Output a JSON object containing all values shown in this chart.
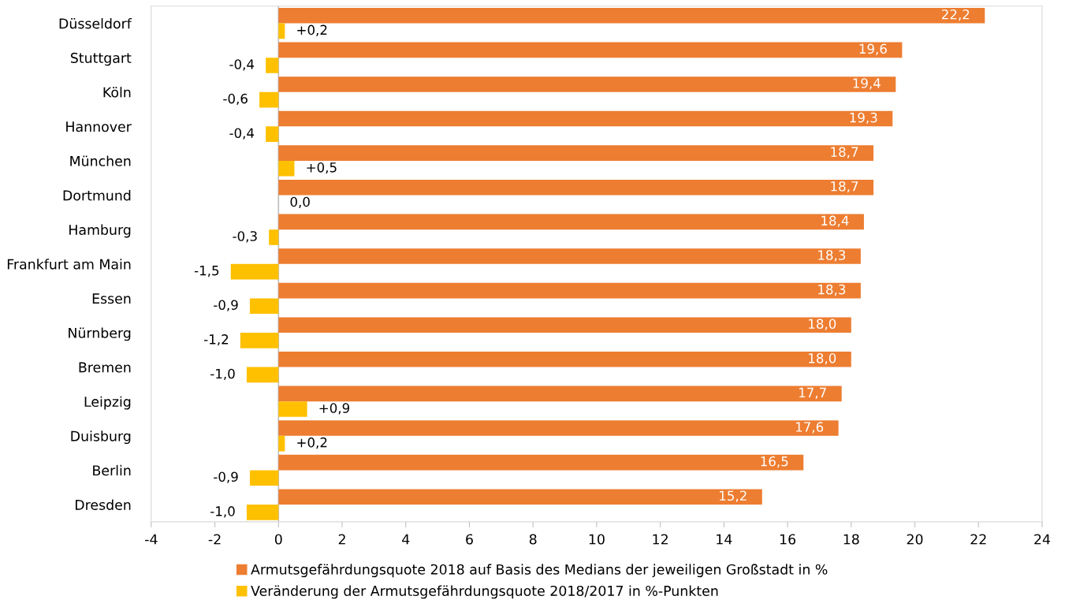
{
  "chart_data": {
    "type": "bar",
    "orientation": "horizontal",
    "categories": [
      "Düsseldorf",
      "Stuttgart",
      "Köln",
      "Hannover",
      "München",
      "Dortmund",
      "Hamburg",
      "Frankfurt am Main",
      "Essen",
      "Nürnberg",
      "Bremen",
      "Leipzig",
      "Duisburg",
      "Berlin",
      "Dresden"
    ],
    "series": [
      {
        "name": "Armutsgefährdungsquote 2018 auf Basis des Medians der jeweiligen Großstadt in %",
        "color": "#ed7d31",
        "values": [
          22.2,
          19.6,
          19.4,
          19.3,
          18.7,
          18.7,
          18.4,
          18.3,
          18.3,
          18.0,
          18.0,
          17.7,
          17.6,
          16.5,
          15.2
        ],
        "value_labels": [
          "22,2",
          "19,6",
          "19,4",
          "19,3",
          "18,7",
          "18,7",
          "18,4",
          "18,3",
          "18,3",
          "18,0",
          "18,0",
          "17,7",
          "17,6",
          "16,5",
          "15,2"
        ]
      },
      {
        "name": "Veränderung der Armutsgefährdungsquote 2018/2017 in %-Punkten",
        "color": "#ffc000",
        "values": [
          0.2,
          -0.4,
          -0.6,
          -0.4,
          0.5,
          0.0,
          -0.3,
          -1.5,
          -0.9,
          -1.2,
          -1.0,
          0.9,
          0.2,
          -0.9,
          -1.0
        ],
        "value_labels": [
          "+0,2",
          "-0,4",
          "-0,6",
          "-0,4",
          "+0,5",
          "0,0",
          "-0,3",
          "-1,5",
          "-0,9",
          "-1,2",
          "-1,0",
          "+0,9",
          "+0,2",
          "-0,9",
          "-1,0"
        ]
      }
    ],
    "xlim": [
      -4,
      24
    ],
    "xticks": [
      {
        "value": -4,
        "label": "-4"
      },
      {
        "value": -2,
        "label": "-2"
      },
      0,
      2,
      4,
      6,
      8,
      10,
      12,
      14,
      16,
      18,
      20,
      22,
      24
    ],
    "ref_lines": [
      {
        "axis": "x",
        "value": 0,
        "color": "#bfbfbf"
      }
    ],
    "grid": false,
    "legend": "bottom"
  }
}
